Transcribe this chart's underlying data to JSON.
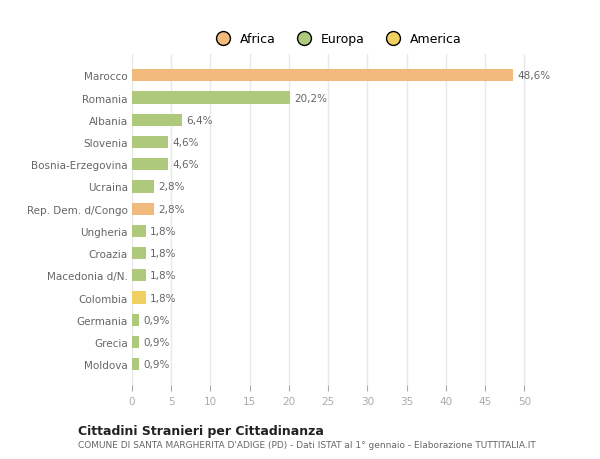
{
  "categories": [
    "Marocco",
    "Romania",
    "Albania",
    "Slovenia",
    "Bosnia-Erzegovina",
    "Ucraina",
    "Rep. Dem. d/Congo",
    "Ungheria",
    "Croazia",
    "Macedonia d/N.",
    "Colombia",
    "Germania",
    "Grecia",
    "Moldova"
  ],
  "values": [
    48.6,
    20.2,
    6.4,
    4.6,
    4.6,
    2.8,
    2.8,
    1.8,
    1.8,
    1.8,
    1.8,
    0.9,
    0.9,
    0.9
  ],
  "labels": [
    "48,6%",
    "20,2%",
    "6,4%",
    "4,6%",
    "4,6%",
    "2,8%",
    "2,8%",
    "1,8%",
    "1,8%",
    "1,8%",
    "1,8%",
    "0,9%",
    "0,9%",
    "0,9%"
  ],
  "colors": [
    "#f2b97c",
    "#afc97c",
    "#afc97c",
    "#afc97c",
    "#afc97c",
    "#afc97c",
    "#f2b97c",
    "#afc97c",
    "#afc97c",
    "#afc97c",
    "#f0d060",
    "#afc97c",
    "#afc97c",
    "#afc97c"
  ],
  "legend_labels": [
    "Africa",
    "Europa",
    "America"
  ],
  "legend_colors": [
    "#f2b97c",
    "#afc97c",
    "#f0d060"
  ],
  "xlim": [
    0,
    52
  ],
  "xticks": [
    0,
    5,
    10,
    15,
    20,
    25,
    30,
    35,
    40,
    45,
    50
  ],
  "title": "Cittadini Stranieri per Cittadinanza",
  "subtitle": "COMUNE DI SANTA MARGHERITA D'ADIGE (PD) - Dati ISTAT al 1° gennaio - Elaborazione TUTTITALIA.IT",
  "bg_color": "#ffffff",
  "grid_color": "#e8e8e8",
  "bar_height": 0.55,
  "label_fontsize": 7.5,
  "tick_fontsize": 7.5,
  "ytick_fontsize": 7.5
}
